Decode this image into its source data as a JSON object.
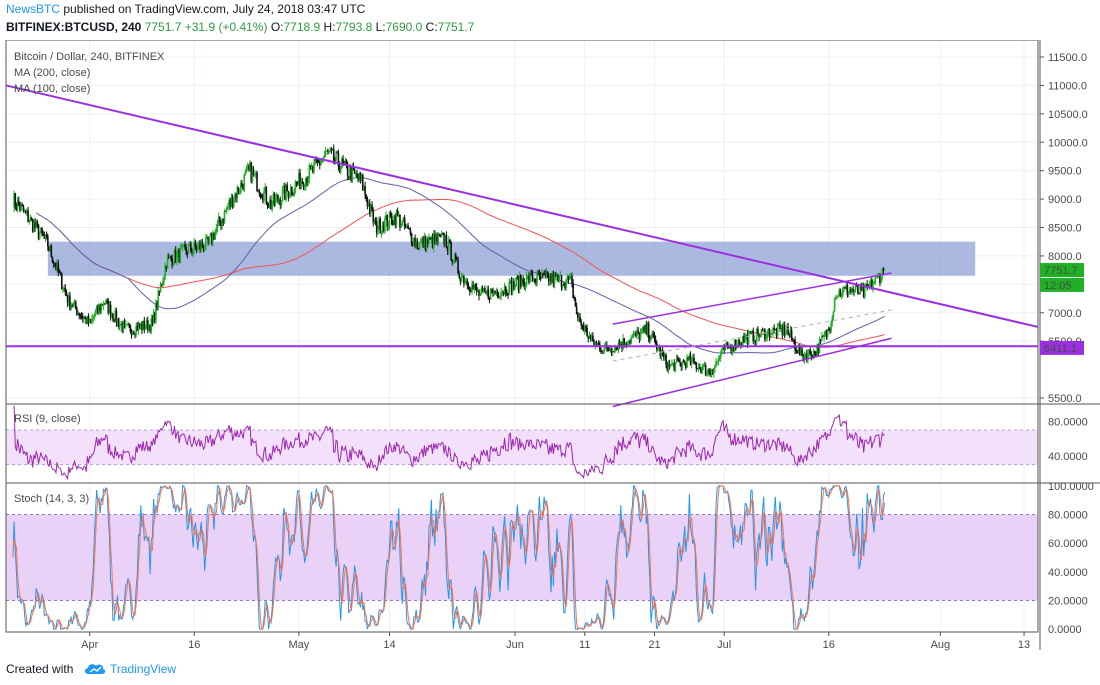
{
  "header": {
    "brand": "NewsBTC",
    "published": "published on TradingView.com, July 24, 2018 03:47 UTC",
    "symbol": "BITFINEX:BTCUSD, 240",
    "last": "7751.7",
    "change": "+31.9 (+0.41%)",
    "o_label": "O:",
    "o": "7718.9",
    "h_label": "H:",
    "h": "7793.8",
    "l_label": "L:",
    "l": "7690.0",
    "c_label": "C:",
    "c": "7751.7"
  },
  "footer": {
    "created": "Created with",
    "platform": "TradingView"
  },
  "colors": {
    "up": "#20b026",
    "down": "#111111",
    "ma200": "#ef5350",
    "ma100": "#5f5fa8",
    "trendline": "#9b30e0",
    "zone": "#8fa2d6",
    "rsi": "#9c27b0",
    "stoch_k": "#2196f3",
    "stoch_d": "#ff7043"
  },
  "chart_data": [
    {
      "type": "candlestick",
      "title": "Bitcoin / Dollar, 240, BITFINEX",
      "indicators": [
        "MA (200, close)",
        "MA (100, close)"
      ],
      "ylim": [
        5400,
        11800
      ],
      "y_ticks": [
        "11500.0",
        "11000.0",
        "10500.0",
        "10000.0",
        "9500.0",
        "9000.0",
        "8500.0",
        "8000.0",
        "7500.0",
        "7000.0",
        "6500.0",
        "5500.0"
      ],
      "x_ticks": [
        "Apr",
        "16",
        "May",
        "14",
        "Jun",
        "11",
        "21",
        "Jul",
        "16",
        "Aug",
        "13"
      ],
      "price_labels": {
        "last": "7751.7",
        "countdown": "12:05",
        "support": "6411.1"
      },
      "close_anchors": [
        [
          "2018-03-21",
          9000
        ],
        [
          "2018-03-23",
          8700
        ],
        [
          "2018-03-26",
          8200
        ],
        [
          "2018-03-29",
          7200
        ],
        [
          "2018-04-01",
          6800
        ],
        [
          "2018-04-03",
          7200
        ],
        [
          "2018-04-06",
          6700
        ],
        [
          "2018-04-10",
          6800
        ],
        [
          "2018-04-12",
          7900
        ],
        [
          "2018-04-15",
          8100
        ],
        [
          "2018-04-18",
          8200
        ],
        [
          "2018-04-21",
          8900
        ],
        [
          "2018-04-24",
          9500
        ],
        [
          "2018-04-27",
          8900
        ],
        [
          "2018-04-30",
          9200
        ],
        [
          "2018-05-03",
          9500
        ],
        [
          "2018-05-05",
          9800
        ],
        [
          "2018-05-07",
          9600
        ],
        [
          "2018-05-10",
          9300
        ],
        [
          "2018-05-12",
          8500
        ],
        [
          "2018-05-15",
          8700
        ],
        [
          "2018-05-18",
          8200
        ],
        [
          "2018-05-22",
          8300
        ],
        [
          "2018-05-24",
          7700
        ],
        [
          "2018-05-27",
          7300
        ],
        [
          "2018-05-30",
          7400
        ],
        [
          "2018-06-03",
          7600
        ],
        [
          "2018-06-06",
          7600
        ],
        [
          "2018-06-09",
          7550
        ],
        [
          "2018-06-10",
          6900
        ],
        [
          "2018-06-12",
          6500
        ],
        [
          "2018-06-14",
          6350
        ],
        [
          "2018-06-17",
          6500
        ],
        [
          "2018-06-20",
          6700
        ],
        [
          "2018-06-23",
          6050
        ],
        [
          "2018-06-26",
          6150
        ],
        [
          "2018-06-29",
          5950
        ],
        [
          "2018-07-01",
          6350
        ],
        [
          "2018-07-04",
          6550
        ],
        [
          "2018-07-07",
          6650
        ],
        [
          "2018-07-10",
          6700
        ],
        [
          "2018-07-12",
          6250
        ],
        [
          "2018-07-14",
          6300
        ],
        [
          "2018-07-16",
          6700
        ],
        [
          "2018-07-17",
          7350
        ],
        [
          "2018-07-19",
          7400
        ],
        [
          "2018-07-21",
          7350
        ],
        [
          "2018-07-23",
          7600
        ],
        [
          "2018-07-24",
          7751.7
        ]
      ],
      "zone": {
        "from": 7650,
        "to": 8250
      },
      "horizontal_line": 6411.1,
      "trendlines": [
        {
          "from": [
            "2018-03-20",
            11000
          ],
          "to": [
            "2018-08-15",
            6750
          ]
        },
        {
          "from": [
            "2018-06-15",
            6800
          ],
          "to": [
            "2018-07-25",
            7700
          ]
        },
        {
          "from": [
            "2018-06-15",
            5350
          ],
          "to": [
            "2018-07-25",
            6550
          ]
        }
      ],
      "dashed_channel_mid": {
        "from": [
          "2018-06-15",
          6150
        ],
        "to": [
          "2018-07-25",
          7050
        ]
      }
    },
    {
      "type": "line",
      "title": "RSI (9, close)",
      "ylim": [
        10,
        100
      ],
      "y_ticks": [
        "80.0000",
        "40.0000"
      ],
      "band": [
        30,
        70
      ]
    },
    {
      "type": "line",
      "title": "Stoch (14, 3, 3)",
      "ylim": [
        -2,
        102
      ],
      "y_ticks": [
        "100.0000",
        "80.0000",
        "60.0000",
        "40.0000",
        "20.0000",
        "0.0000"
      ],
      "band": [
        20,
        80
      ]
    }
  ]
}
